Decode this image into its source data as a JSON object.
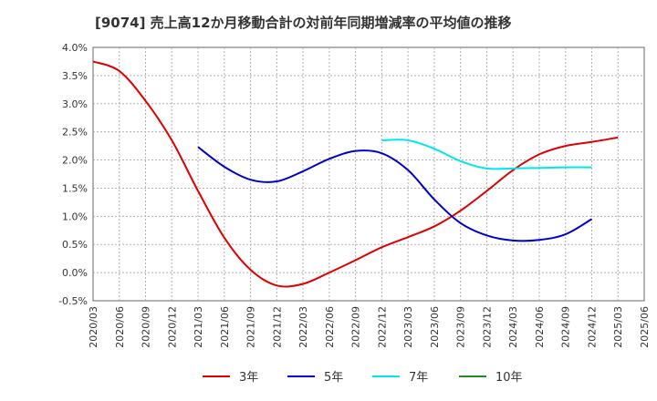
{
  "chart_data": {
    "type": "line",
    "title": "[9074]  売上高12か月移動合計の対前年同期増減率の平均値の推移",
    "xlabel": "",
    "ylabel": "",
    "ylim": [
      -0.5,
      4.0
    ],
    "yticks": [
      "4.0%",
      "3.5%",
      "3.0%",
      "2.5%",
      "2.0%",
      "1.5%",
      "1.0%",
      "0.5%",
      "0.0%",
      "-0.5%"
    ],
    "ytick_values": [
      4.0,
      3.5,
      3.0,
      2.5,
      2.0,
      1.5,
      1.0,
      0.5,
      0.0,
      -0.5
    ],
    "categories": [
      "2020/03",
      "2020/06",
      "2020/09",
      "2020/12",
      "2021/03",
      "2021/06",
      "2021/09",
      "2021/12",
      "2022/03",
      "2022/06",
      "2022/09",
      "2022/12",
      "2023/03",
      "2023/06",
      "2023/09",
      "2023/12",
      "2024/03",
      "2024/06",
      "2024/09",
      "2024/12",
      "2025/03",
      "2025/06"
    ],
    "grid": true,
    "legend_placement": "bottom",
    "series": [
      {
        "name": "3年",
        "color": "#dd0000",
        "values": [
          3.75,
          3.58,
          3.05,
          2.35,
          1.45,
          0.62,
          0.05,
          -0.23,
          -0.2,
          0.0,
          0.22,
          0.45,
          0.63,
          0.82,
          1.1,
          1.45,
          1.82,
          2.1,
          2.25,
          2.32,
          2.4,
          null
        ]
      },
      {
        "name": "5年",
        "color": "#0000cc",
        "values": [
          null,
          null,
          null,
          null,
          2.23,
          1.88,
          1.65,
          1.62,
          1.8,
          2.02,
          2.16,
          2.12,
          1.82,
          1.3,
          0.88,
          0.66,
          0.57,
          0.58,
          0.68,
          0.95,
          null,
          null
        ]
      },
      {
        "name": "7年",
        "color": "#00e5ee",
        "values": [
          null,
          null,
          null,
          null,
          null,
          null,
          null,
          null,
          null,
          null,
          null,
          2.35,
          2.35,
          2.2,
          1.98,
          1.85,
          1.85,
          1.86,
          1.87,
          1.87,
          null,
          null
        ]
      },
      {
        "name": "10年",
        "color": "#228b22",
        "values": [
          null,
          null,
          null,
          null,
          null,
          null,
          null,
          null,
          null,
          null,
          null,
          null,
          null,
          null,
          null,
          null,
          null,
          null,
          null,
          null,
          null,
          null
        ]
      }
    ]
  }
}
